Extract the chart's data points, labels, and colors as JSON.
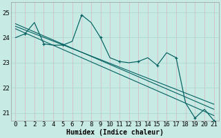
{
  "xlabel": "Humidex (Indice chaleur)",
  "ylabel": "",
  "bg_color": "#c8eae4",
  "grid_color": "#b0d8d0",
  "line_color": "#006060",
  "xlim": [
    -0.5,
    21.5
  ],
  "ylim": [
    20.7,
    25.4
  ],
  "yticks": [
    21,
    22,
    23,
    24,
    25
  ],
  "xticks": [
    0,
    1,
    2,
    3,
    4,
    5,
    6,
    7,
    8,
    9,
    10,
    11,
    12,
    13,
    14,
    15,
    16,
    17,
    18,
    19,
    20,
    21
  ],
  "data_y": [
    24.0,
    24.15,
    24.6,
    23.75,
    23.7,
    23.7,
    23.85,
    24.9,
    24.6,
    24.0,
    23.2,
    23.05,
    23.0,
    23.05,
    23.2,
    22.9,
    23.4,
    23.2,
    21.4,
    20.8,
    21.15,
    20.7
  ],
  "marker_indices": [
    1,
    3,
    5,
    7,
    9,
    11,
    13,
    15,
    17,
    19,
    21
  ],
  "reg_lines": [
    {
      "x": [
        0,
        21
      ],
      "y": [
        24.55,
        21.15
      ]
    },
    {
      "x": [
        0,
        21
      ],
      "y": [
        24.45,
        21.35
      ]
    },
    {
      "x": [
        0,
        21
      ],
      "y": [
        24.35,
        20.9
      ]
    }
  ],
  "xlabel_fontsize": 7,
  "tick_fontsize": 6.5
}
